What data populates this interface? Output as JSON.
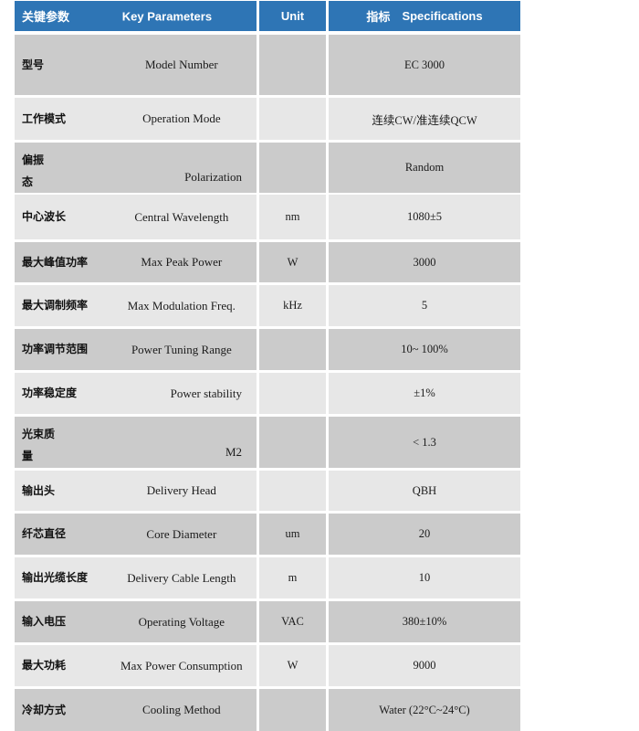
{
  "table": {
    "header": {
      "col1_cn": "关键参数",
      "col1_en": "Key  Parameters",
      "col2": "Unit",
      "col3_cn": "指标",
      "col3_en": "Specifications"
    },
    "rows": [
      {
        "cn": "型号",
        "en": "Model Number",
        "unit": "",
        "value": "EC 3000"
      },
      {
        "cn": "工作模式",
        "en": "Operation Mode",
        "unit": "",
        "value": "连续CW/准连续QCW"
      },
      {
        "cn": "偏振",
        "cn2": "态",
        "en": "Polarization",
        "unit": "",
        "value": "Random",
        "en_align": "right"
      },
      {
        "cn": "中心波长",
        "en": "Central Wavelength",
        "unit": "nm",
        "value": "1080±5"
      },
      {
        "cn": "最大峰值功率",
        "en": "Max  Peak Power",
        "unit": "W",
        "value": "3000"
      },
      {
        "cn": "最大调制频率",
        "en": "Max Modulation Freq.",
        "unit": "kHz",
        "value": "5"
      },
      {
        "cn": "功率调节范围",
        "en": "Power Tuning Range",
        "unit": "",
        "value": "10~ 100%"
      },
      {
        "cn": "功率稳定度",
        "en": "Power stability",
        "unit": "",
        "value": "±1%",
        "en_align": "right"
      },
      {
        "cn": "光束质",
        "cn2": "量",
        "en": "M2",
        "unit": "",
        "value": "< 1.3",
        "en_align": "right"
      },
      {
        "cn": "输出头",
        "en": "Delivery Head",
        "unit": "",
        "value": "QBH"
      },
      {
        "cn": "纤芯直径",
        "en": "Core Diameter",
        "unit": "um",
        "value": "20"
      },
      {
        "cn": "输出光缆长度",
        "en": "Delivery Cable Length",
        "unit": "m",
        "value": "10"
      },
      {
        "cn": "输入电压",
        "en": "Operating Voltage",
        "unit": "VAC",
        "value": "380±10%"
      },
      {
        "cn": "最大功耗",
        "en": "Max Power Consumption",
        "unit": "W",
        "value": "9000"
      },
      {
        "cn": "冷却方式",
        "en": "Cooling Method",
        "unit": "",
        "value": "Water (22°C~24°C)"
      }
    ],
    "colors": {
      "header_bg": "#2e75b5",
      "header_text": "#ffffff",
      "row_dark": "#cbcbcb",
      "row_light": "#e7e7e7",
      "body_text": "#1b1b1b"
    }
  }
}
